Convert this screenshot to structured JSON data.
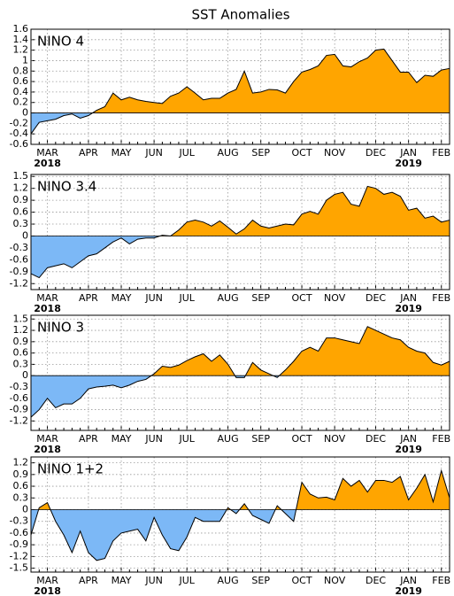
{
  "title": "SST Anomalies",
  "chart_data": [
    {
      "type": "area",
      "label": "NINO 4",
      "pos_color": "#ffa500",
      "neg_color": "#7cb8f6",
      "grid": true,
      "categories": [
        null,
        null,
        "MAR",
        null,
        null,
        null,
        null,
        "APR",
        null,
        null,
        null,
        "MAY",
        null,
        null,
        null,
        "JUN",
        null,
        null,
        null,
        "JUL",
        null,
        null,
        null,
        null,
        "AUG",
        null,
        null,
        null,
        "SEP",
        null,
        null,
        null,
        null,
        "OCT",
        null,
        null,
        null,
        "NOV",
        null,
        null,
        null,
        null,
        "DEC",
        null,
        null,
        null,
        "JAN",
        null,
        null,
        null,
        "FEB",
        null
      ],
      "years": [
        null,
        null,
        "2018",
        null,
        null,
        null,
        null,
        null,
        null,
        null,
        null,
        null,
        null,
        null,
        null,
        null,
        null,
        null,
        null,
        null,
        null,
        null,
        null,
        null,
        null,
        null,
        null,
        null,
        null,
        null,
        null,
        null,
        null,
        null,
        null,
        null,
        null,
        null,
        null,
        null,
        null,
        null,
        null,
        null,
        null,
        null,
        "2019",
        null,
        null,
        null,
        null,
        null
      ],
      "values": [
        -0.4,
        -0.18,
        -0.15,
        -0.12,
        -0.05,
        -0.02,
        -0.1,
        -0.05,
        0.05,
        0.12,
        0.38,
        0.25,
        0.3,
        0.25,
        0.22,
        0.2,
        0.18,
        0.32,
        0.38,
        0.5,
        0.38,
        0.25,
        0.28,
        0.28,
        0.38,
        0.45,
        0.8,
        0.38,
        0.4,
        0.45,
        0.44,
        0.38,
        0.6,
        0.78,
        0.83,
        0.9,
        1.1,
        1.12,
        0.9,
        0.88,
        0.98,
        1.05,
        1.2,
        1.22,
        1.0,
        0.78,
        0.78,
        0.58,
        0.72,
        0.7,
        0.82,
        0.85
      ],
      "ylim": [
        -0.6,
        1.6
      ],
      "yticks": [
        -0.6,
        -0.4,
        -0.2,
        0,
        0.2,
        0.4,
        0.6,
        0.8,
        1,
        1.2,
        1.4,
        1.6
      ]
    },
    {
      "type": "area",
      "label": "NINO 3.4",
      "pos_color": "#ffa500",
      "neg_color": "#7cb8f6",
      "grid": true,
      "categories": [
        null,
        null,
        "MAR",
        null,
        null,
        null,
        null,
        "APR",
        null,
        null,
        null,
        "MAY",
        null,
        null,
        null,
        "JUN",
        null,
        null,
        null,
        "JUL",
        null,
        null,
        null,
        null,
        "AUG",
        null,
        null,
        null,
        "SEP",
        null,
        null,
        null,
        null,
        "OCT",
        null,
        null,
        null,
        "NOV",
        null,
        null,
        null,
        null,
        "DEC",
        null,
        null,
        null,
        "JAN",
        null,
        null,
        null,
        "FEB",
        null
      ],
      "years": [
        null,
        null,
        "2018",
        null,
        null,
        null,
        null,
        null,
        null,
        null,
        null,
        null,
        null,
        null,
        null,
        null,
        null,
        null,
        null,
        null,
        null,
        null,
        null,
        null,
        null,
        null,
        null,
        null,
        null,
        null,
        null,
        null,
        null,
        null,
        null,
        null,
        null,
        null,
        null,
        null,
        null,
        null,
        null,
        null,
        null,
        null,
        "2019",
        null,
        null,
        null,
        null,
        null
      ],
      "values": [
        -0.95,
        -1.05,
        -0.8,
        -0.75,
        -0.7,
        -0.8,
        -0.65,
        -0.5,
        -0.45,
        -0.3,
        -0.15,
        -0.05,
        -0.2,
        -0.08,
        -0.05,
        -0.05,
        0.02,
        0,
        0.15,
        0.35,
        0.4,
        0.35,
        0.25,
        0.38,
        0.22,
        0.05,
        0.18,
        0.4,
        0.25,
        0.2,
        0.25,
        0.3,
        0.28,
        0.55,
        0.62,
        0.55,
        0.9,
        1.05,
        1.1,
        0.8,
        0.75,
        1.25,
        1.2,
        1.05,
        1.1,
        1.0,
        0.65,
        0.7,
        0.45,
        0.5,
        0.35,
        0.4
      ],
      "ylim": [
        -1.35,
        1.55
      ],
      "yticks": [
        -1.2,
        -0.9,
        -0.6,
        -0.3,
        0,
        0.3,
        0.6,
        0.9,
        1.2,
        1.5
      ]
    },
    {
      "type": "area",
      "label": "NINO 3",
      "pos_color": "#ffa500",
      "neg_color": "#7cb8f6",
      "grid": true,
      "categories": [
        null,
        null,
        "MAR",
        null,
        null,
        null,
        null,
        "APR",
        null,
        null,
        null,
        "MAY",
        null,
        null,
        null,
        "JUN",
        null,
        null,
        null,
        "JUL",
        null,
        null,
        null,
        null,
        "AUG",
        null,
        null,
        null,
        "SEP",
        null,
        null,
        null,
        null,
        "OCT",
        null,
        null,
        null,
        "NOV",
        null,
        null,
        null,
        null,
        "DEC",
        null,
        null,
        null,
        "JAN",
        null,
        null,
        null,
        "FEB",
        null
      ],
      "years": [
        null,
        null,
        "2018",
        null,
        null,
        null,
        null,
        null,
        null,
        null,
        null,
        null,
        null,
        null,
        null,
        null,
        null,
        null,
        null,
        null,
        null,
        null,
        null,
        null,
        null,
        null,
        null,
        null,
        null,
        null,
        null,
        null,
        null,
        null,
        null,
        null,
        null,
        null,
        null,
        null,
        null,
        null,
        null,
        null,
        null,
        null,
        "2019",
        null,
        null,
        null,
        null,
        null
      ],
      "values": [
        -1.1,
        -0.9,
        -0.6,
        -0.85,
        -0.75,
        -0.75,
        -0.6,
        -0.35,
        -0.3,
        -0.28,
        -0.25,
        -0.32,
        -0.25,
        -0.15,
        -0.1,
        0.05,
        0.25,
        0.22,
        0.28,
        0.4,
        0.5,
        0.58,
        0.38,
        0.55,
        0.3,
        -0.05,
        -0.05,
        0.35,
        0.15,
        0.05,
        -0.05,
        0.15,
        0.38,
        0.65,
        0.75,
        0.65,
        1.0,
        1.0,
        0.95,
        0.9,
        0.85,
        1.3,
        1.2,
        1.1,
        1.0,
        0.95,
        0.75,
        0.65,
        0.6,
        0.35,
        0.28,
        0.38
      ],
      "ylim": [
        -1.45,
        1.6
      ],
      "yticks": [
        -1.2,
        -0.9,
        -0.6,
        -0.3,
        0,
        0.3,
        0.6,
        0.9,
        1.2,
        1.5
      ]
    },
    {
      "type": "area",
      "label": "NINO 1+2",
      "pos_color": "#ffa500",
      "neg_color": "#7cb8f6",
      "grid": true,
      "categories": [
        null,
        null,
        "MAR",
        null,
        null,
        null,
        null,
        "APR",
        null,
        null,
        null,
        "MAY",
        null,
        null,
        null,
        "JUN",
        null,
        null,
        null,
        "JUL",
        null,
        null,
        null,
        null,
        "AUG",
        null,
        null,
        null,
        "SEP",
        null,
        null,
        null,
        null,
        "OCT",
        null,
        null,
        null,
        "NOV",
        null,
        null,
        null,
        null,
        "DEC",
        null,
        null,
        null,
        "JAN",
        null,
        null,
        null,
        "FEB",
        null
      ],
      "years": [
        null,
        null,
        "2018",
        null,
        null,
        null,
        null,
        null,
        null,
        null,
        null,
        null,
        null,
        null,
        null,
        null,
        null,
        null,
        null,
        null,
        null,
        null,
        null,
        null,
        null,
        null,
        null,
        null,
        null,
        null,
        null,
        null,
        null,
        null,
        null,
        null,
        null,
        null,
        null,
        null,
        null,
        null,
        null,
        null,
        null,
        null,
        "2019",
        null,
        null,
        null,
        null,
        null
      ],
      "values": [
        -0.65,
        0.05,
        0.18,
        -0.3,
        -0.65,
        -1.1,
        -0.55,
        -1.1,
        -1.3,
        -1.25,
        -0.8,
        -0.6,
        -0.55,
        -0.5,
        -0.8,
        -0.2,
        -0.65,
        -1.0,
        -1.05,
        -0.7,
        -0.2,
        -0.3,
        -0.3,
        -0.3,
        0.05,
        -0.1,
        0.15,
        -0.15,
        -0.25,
        -0.35,
        0.1,
        -0.1,
        -0.3,
        0.7,
        0.4,
        0.3,
        0.32,
        0.25,
        0.8,
        0.6,
        0.75,
        0.45,
        0.75,
        0.75,
        0.7,
        0.85,
        0.25,
        0.55,
        0.9,
        0.2,
        1.0,
        0.3
      ],
      "ylim": [
        -1.6,
        1.35
      ],
      "yticks": [
        -1.5,
        -1.2,
        -0.9,
        -0.6,
        -0.3,
        0,
        0.3,
        0.6,
        0.9,
        1.2
      ]
    }
  ]
}
